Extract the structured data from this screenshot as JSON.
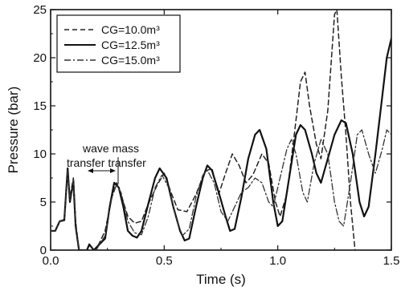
{
  "chart_data": {
    "type": "line",
    "xlabel": "Time (s)",
    "ylabel": "Pressure (bar)",
    "xlim": [
      0.0,
      1.5
    ],
    "ylim": [
      0,
      25
    ],
    "x_ticks": [
      "0.0",
      "0.5",
      "1.0",
      "1.5"
    ],
    "y_ticks": [
      "0",
      "5",
      "10",
      "15",
      "20",
      "25"
    ],
    "grid": false,
    "legend_position": "top-left",
    "annotations": {
      "line1": "wave mass",
      "line2": "transfer transfer"
    },
    "series": [
      {
        "name": "CG=10.0m³",
        "style": "dashed",
        "color": "#222222",
        "points": [
          [
            0.0,
            2.0
          ],
          [
            0.02,
            2.0
          ],
          [
            0.04,
            3.0
          ],
          [
            0.06,
            3.2
          ],
          [
            0.075,
            8.2
          ],
          [
            0.085,
            5.5
          ],
          [
            0.1,
            7.5
          ],
          [
            0.11,
            3.0
          ],
          [
            0.125,
            0.0
          ],
          [
            0.2,
            0.0
          ],
          [
            0.24,
            2.0
          ],
          [
            0.27,
            5.5
          ],
          [
            0.29,
            7.0
          ],
          [
            0.31,
            5.8
          ],
          [
            0.34,
            3.5
          ],
          [
            0.37,
            2.8
          ],
          [
            0.4,
            3.0
          ],
          [
            0.43,
            4.8
          ],
          [
            0.47,
            6.8
          ],
          [
            0.5,
            8.0
          ],
          [
            0.53,
            6.0
          ],
          [
            0.56,
            4.2
          ],
          [
            0.6,
            4.0
          ],
          [
            0.64,
            5.8
          ],
          [
            0.68,
            8.2
          ],
          [
            0.71,
            8.5
          ],
          [
            0.74,
            5.8
          ],
          [
            0.77,
            8.0
          ],
          [
            0.8,
            10.0
          ],
          [
            0.83,
            8.8
          ],
          [
            0.86,
            7.0
          ],
          [
            0.89,
            7.8
          ],
          [
            0.93,
            10.0
          ],
          [
            0.96,
            9.0
          ],
          [
            0.99,
            5.0
          ],
          [
            1.01,
            3.5
          ],
          [
            1.04,
            5.8
          ],
          [
            1.07,
            11.5
          ],
          [
            1.1,
            17.5
          ],
          [
            1.12,
            18.5
          ],
          [
            1.14,
            15.0
          ],
          [
            1.17,
            11.0
          ],
          [
            1.19,
            9.5
          ],
          [
            1.22,
            14.5
          ],
          [
            1.25,
            24.5
          ],
          [
            1.26,
            25.0
          ],
          [
            1.28,
            18.0
          ],
          [
            1.3,
            12.0
          ],
          [
            1.32,
            5.0
          ],
          [
            1.34,
            0.0
          ]
        ]
      },
      {
        "name": "CG=12.5m³",
        "style": "solid",
        "color": "#111111",
        "points": [
          [
            0.0,
            2.0
          ],
          [
            0.02,
            2.0
          ],
          [
            0.04,
            3.0
          ],
          [
            0.06,
            3.1
          ],
          [
            0.075,
            8.5
          ],
          [
            0.085,
            5.0
          ],
          [
            0.1,
            7.2
          ],
          [
            0.11,
            2.5
          ],
          [
            0.125,
            0.0
          ],
          [
            0.16,
            0.0
          ],
          [
            0.17,
            0.6
          ],
          [
            0.19,
            0.0
          ],
          [
            0.24,
            1.2
          ],
          [
            0.26,
            4.5
          ],
          [
            0.28,
            7.0
          ],
          [
            0.3,
            6.5
          ],
          [
            0.32,
            4.5
          ],
          [
            0.34,
            2.0
          ],
          [
            0.36,
            1.5
          ],
          [
            0.38,
            1.3
          ],
          [
            0.4,
            2.0
          ],
          [
            0.43,
            4.8
          ],
          [
            0.46,
            7.5
          ],
          [
            0.48,
            8.5
          ],
          [
            0.51,
            7.5
          ],
          [
            0.54,
            4.5
          ],
          [
            0.57,
            2.0
          ],
          [
            0.59,
            1.0
          ],
          [
            0.61,
            1.2
          ],
          [
            0.64,
            4.5
          ],
          [
            0.67,
            7.5
          ],
          [
            0.69,
            8.8
          ],
          [
            0.71,
            8.3
          ],
          [
            0.74,
            6.0
          ],
          [
            0.77,
            3.5
          ],
          [
            0.79,
            2.0
          ],
          [
            0.81,
            2.2
          ],
          [
            0.84,
            5.5
          ],
          [
            0.87,
            9.5
          ],
          [
            0.9,
            12.0
          ],
          [
            0.92,
            12.5
          ],
          [
            0.95,
            10.5
          ],
          [
            0.98,
            5.0
          ],
          [
            1.0,
            2.5
          ],
          [
            1.02,
            3.0
          ],
          [
            1.05,
            7.5
          ],
          [
            1.08,
            12.0
          ],
          [
            1.1,
            13.0
          ],
          [
            1.12,
            12.5
          ],
          [
            1.15,
            10.0
          ],
          [
            1.17,
            8.0
          ],
          [
            1.19,
            7.0
          ],
          [
            1.22,
            9.5
          ],
          [
            1.25,
            12.0
          ],
          [
            1.28,
            13.5
          ],
          [
            1.3,
            13.2
          ],
          [
            1.33,
            10.0
          ],
          [
            1.36,
            5.0
          ],
          [
            1.38,
            3.5
          ],
          [
            1.4,
            4.5
          ],
          [
            1.43,
            10.0
          ],
          [
            1.46,
            16.0
          ],
          [
            1.48,
            20.0
          ],
          [
            1.5,
            22.0
          ]
        ]
      },
      {
        "name": "CG=15.0m³",
        "style": "dashdot",
        "color": "#333333",
        "points": [
          [
            0.0,
            2.0
          ],
          [
            0.02,
            2.0
          ],
          [
            0.04,
            3.0
          ],
          [
            0.06,
            3.1
          ],
          [
            0.075,
            8.3
          ],
          [
            0.085,
            5.2
          ],
          [
            0.1,
            7.3
          ],
          [
            0.11,
            2.8
          ],
          [
            0.125,
            0.0
          ],
          [
            0.2,
            0.0
          ],
          [
            0.24,
            1.5
          ],
          [
            0.27,
            5.5
          ],
          [
            0.29,
            6.8
          ],
          [
            0.31,
            6.0
          ],
          [
            0.34,
            3.0
          ],
          [
            0.37,
            1.8
          ],
          [
            0.4,
            1.6
          ],
          [
            0.43,
            3.5
          ],
          [
            0.46,
            6.5
          ],
          [
            0.49,
            7.8
          ],
          [
            0.52,
            6.5
          ],
          [
            0.55,
            3.5
          ],
          [
            0.58,
            1.5
          ],
          [
            0.61,
            2.2
          ],
          [
            0.64,
            5.5
          ],
          [
            0.67,
            7.8
          ],
          [
            0.69,
            8.3
          ],
          [
            0.72,
            7.0
          ],
          [
            0.75,
            4.0
          ],
          [
            0.78,
            3.0
          ],
          [
            0.81,
            4.5
          ],
          [
            0.84,
            6.0
          ],
          [
            0.87,
            6.5
          ],
          [
            0.9,
            7.5
          ],
          [
            0.93,
            7.0
          ],
          [
            0.96,
            5.0
          ],
          [
            0.98,
            4.5
          ],
          [
            1.01,
            7.5
          ],
          [
            1.04,
            10.5
          ],
          [
            1.06,
            11.5
          ],
          [
            1.08,
            10.0
          ],
          [
            1.11,
            6.0
          ],
          [
            1.13,
            5.0
          ],
          [
            1.16,
            9.0
          ],
          [
            1.19,
            11.5
          ],
          [
            1.22,
            10.0
          ],
          [
            1.25,
            5.0
          ],
          [
            1.27,
            3.0
          ],
          [
            1.29,
            2.5
          ],
          [
            1.32,
            7.0
          ],
          [
            1.35,
            12.0
          ],
          [
            1.37,
            12.5
          ],
          [
            1.4,
            10.0
          ],
          [
            1.43,
            8.0
          ],
          [
            1.46,
            10.5
          ],
          [
            1.48,
            12.5
          ],
          [
            1.5,
            12.0
          ]
        ]
      }
    ]
  }
}
